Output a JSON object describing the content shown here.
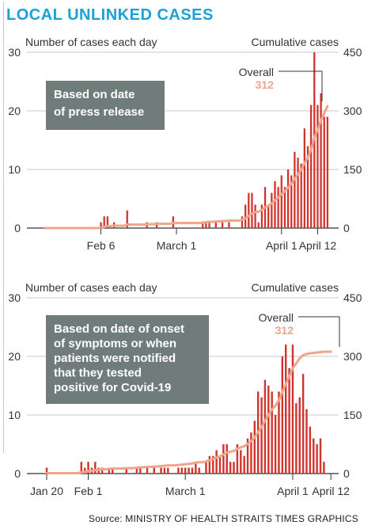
{
  "header": {
    "title": "LOCAL UNLINKED CASES"
  },
  "footer": {
    "source": "Source: MINISTRY OF HEALTH   STRAITS TIMES GRAPHICS"
  },
  "colors": {
    "title": "#1ba1d6",
    "bar": "#d0342c",
    "line": "#f0a58a",
    "box": "#707c7a",
    "axis": "#333333",
    "grid": "#c8c8c8"
  },
  "chart_data": [
    {
      "type": "bar",
      "left_axis_label": "Number of cases each day",
      "right_axis_label": "Cumulative cases",
      "ylim": [
        0,
        30
      ],
      "y_ticks": [
        0,
        10,
        20,
        30
      ],
      "y2lim": [
        0,
        450
      ],
      "y2_ticks": [
        0,
        150,
        300,
        450
      ],
      "x_tick_labels": [
        "Feb 6",
        "March 1",
        "April 1",
        "April 12"
      ],
      "x_tick_days": [
        17,
        40,
        72,
        83
      ],
      "box_text": [
        "Based on date",
        "of press release"
      ],
      "annotation": {
        "label": "Overall",
        "value": "312"
      },
      "series": [
        {
          "type": "bar",
          "values": [
            0,
            0,
            0,
            0,
            0,
            0,
            0,
            0,
            0,
            0,
            0,
            0,
            0,
            0,
            0,
            0,
            0,
            1,
            2,
            2,
            0,
            1,
            0,
            0,
            0,
            3,
            0,
            0,
            0,
            0,
            0,
            1,
            0,
            0,
            1,
            0,
            0,
            0,
            0,
            2,
            0,
            0,
            0,
            0,
            0,
            0,
            0,
            0,
            1,
            1,
            1,
            0,
            1,
            0,
            1,
            0,
            1,
            0,
            0,
            0,
            2,
            4,
            6,
            6,
            4,
            1,
            4,
            7,
            4,
            6,
            8,
            7,
            9,
            7,
            10,
            9,
            13,
            12,
            11,
            17,
            14,
            21,
            30,
            21,
            23,
            19,
            19
          ]
        },
        {
          "type": "line",
          "values": [
            0,
            0,
            0,
            0,
            0,
            0,
            0,
            0,
            0,
            0,
            0,
            0,
            0,
            0,
            0,
            0,
            0,
            1,
            3,
            5,
            5,
            6,
            6,
            6,
            6,
            9,
            9,
            9,
            9,
            9,
            9,
            10,
            10,
            10,
            11,
            11,
            11,
            11,
            11,
            13,
            13,
            13,
            13,
            13,
            13,
            13,
            13,
            13,
            14,
            15,
            16,
            16,
            17,
            17,
            18,
            18,
            19,
            19,
            19,
            19,
            21,
            25,
            31,
            37,
            41,
            42,
            46,
            53,
            57,
            63,
            71,
            78,
            87,
            94,
            104,
            113,
            126,
            138,
            149,
            166,
            180,
            201,
            231,
            252,
            275,
            294,
            312
          ]
        }
      ]
    },
    {
      "type": "bar",
      "left_axis_label": "Number of cases each day",
      "right_axis_label": "Cumulative cases",
      "ylim": [
        0,
        30
      ],
      "y_ticks": [
        0,
        10,
        20,
        30
      ],
      "y2lim": [
        0,
        450
      ],
      "y2_ticks": [
        0,
        150,
        300,
        450
      ],
      "x_tick_labels": [
        "Jan 20",
        "Feb 1",
        "March 1",
        "April 1",
        "April 12"
      ],
      "x_tick_days": [
        0,
        12,
        40,
        71,
        82
      ],
      "box_text": [
        "Based on date of onset",
        "of symptoms or when",
        "patients were notified",
        "that they tested",
        "positive for Covid-19"
      ],
      "annotation": {
        "label": "Overall",
        "value": "312"
      },
      "series": [
        {
          "type": "bar",
          "values": [
            1,
            0,
            0,
            0,
            0,
            0,
            0,
            0,
            0,
            0,
            2,
            1,
            2,
            1,
            2,
            1,
            1,
            0,
            1,
            1,
            0,
            0,
            0,
            1,
            0,
            0,
            1,
            1,
            0,
            1,
            0,
            1,
            0,
            1,
            1,
            1,
            0,
            0,
            1,
            1,
            1,
            1,
            1,
            2,
            1,
            0,
            2,
            3,
            3,
            4,
            3,
            5,
            5,
            2,
            2,
            5,
            4,
            3,
            6,
            7,
            9,
            14,
            13,
            16,
            15,
            14,
            10,
            14,
            20,
            22,
            18,
            22,
            12,
            13,
            17,
            11,
            8,
            6,
            5,
            6,
            2,
            0,
            0
          ]
        },
        {
          "type": "line",
          "values": [
            1,
            1,
            1,
            1,
            1,
            1,
            1,
            1,
            1,
            1,
            3,
            4,
            6,
            7,
            9,
            10,
            11,
            11,
            12,
            13,
            13,
            13,
            13,
            14,
            14,
            14,
            15,
            16,
            16,
            17,
            17,
            18,
            18,
            19,
            20,
            21,
            21,
            21,
            22,
            23,
            24,
            25,
            26,
            28,
            29,
            29,
            31,
            34,
            37,
            41,
            44,
            49,
            54,
            56,
            58,
            63,
            67,
            70,
            76,
            83,
            92,
            106,
            119,
            135,
            150,
            164,
            174,
            188,
            208,
            230,
            248,
            270,
            282,
            295,
            303,
            306,
            308,
            309,
            310,
            311,
            312,
            312,
            312
          ]
        }
      ]
    }
  ]
}
